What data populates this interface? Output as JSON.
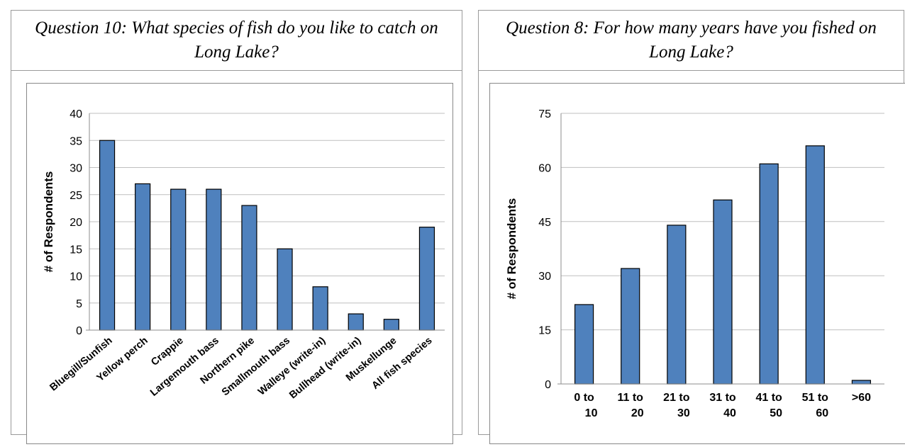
{
  "chart_data": [
    {
      "type": "bar",
      "title": "Question 10:  What species of fish do you like to catch on Long Lake?",
      "xlabel": "",
      "ylabel": "# of Respondents",
      "categories": [
        "Bluegill/Sunfish",
        "Yellow perch",
        "Crappie",
        "Largemouth bass",
        "Northern pike",
        "Smallmouth bass",
        "Walleye (write-in)",
        "Bullhead  (write-in)",
        "Muskellunge",
        "All fish species"
      ],
      "values": [
        35,
        27,
        26,
        26,
        23,
        15,
        8,
        3,
        2,
        19
      ],
      "ylim": [
        0,
        40
      ],
      "yticks": [
        0,
        5,
        10,
        15,
        20,
        25,
        30,
        35,
        40
      ],
      "grid": true,
      "bar_color": "#4f81bd"
    },
    {
      "type": "bar",
      "title": "Question 8:  For how many years have you fished on Long Lake?",
      "xlabel": "",
      "ylabel": "# of Respondents",
      "categories": [
        "0 to 10",
        "11 to 20",
        "21 to 30",
        "31 to 40",
        "41 to 50",
        "51 to 60",
        ">60"
      ],
      "values": [
        22,
        32,
        44,
        51,
        61,
        66,
        1
      ],
      "ylim": [
        0,
        75
      ],
      "yticks": [
        0,
        15,
        30,
        45,
        60,
        75
      ],
      "grid": true,
      "bar_color": "#4f81bd"
    }
  ]
}
